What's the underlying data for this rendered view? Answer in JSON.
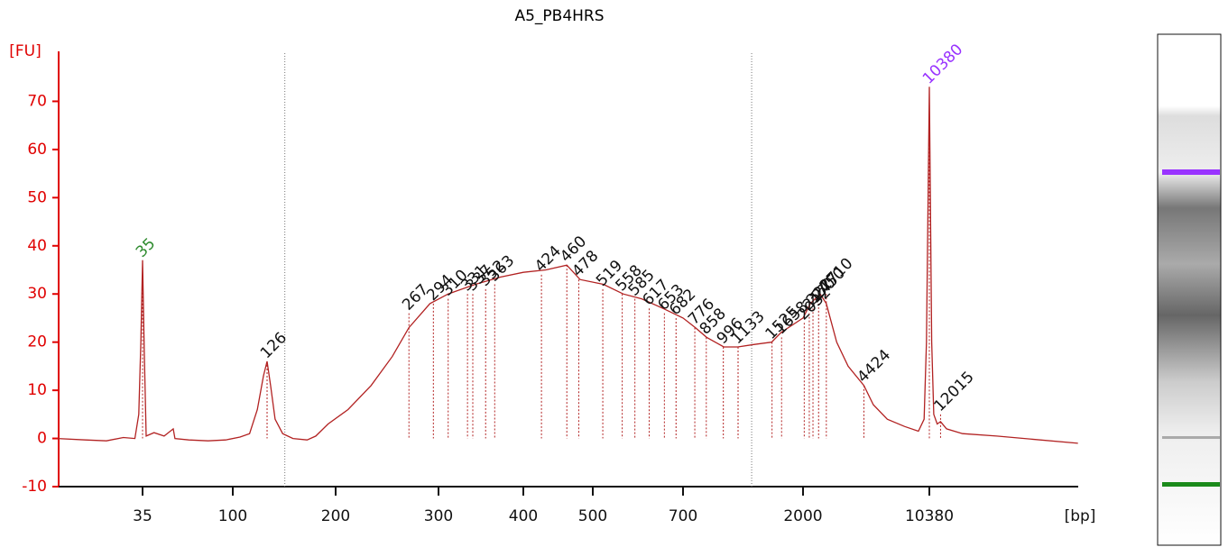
{
  "chart_data": {
    "type": "electropherogram",
    "title": "A5_PB4HRS",
    "ylabel": "[FU]",
    "xlabel": "[bp]",
    "ylim": [
      -10,
      80
    ],
    "yticks": [
      -10,
      0,
      10,
      20,
      30,
      40,
      50,
      60,
      70
    ],
    "xticks": [
      35,
      100,
      200,
      300,
      400,
      500,
      700,
      2000,
      10380
    ],
    "region_bounds": [
      142,
      1276
    ],
    "trace": {
      "color": "#b22222",
      "x": [
        13,
        18,
        23,
        28,
        32,
        33.5,
        34.3,
        35,
        35.7,
        36.5,
        40,
        45,
        50,
        51,
        60,
        75,
        92,
        105,
        112,
        118,
        123,
        126,
        129,
        133,
        140,
        150,
        165,
        175,
        190,
        210,
        230,
        250,
        267,
        290,
        310,
        340,
        370,
        400,
        430,
        460,
        480,
        520,
        560,
        600,
        650,
        700,
        780,
        860,
        1000,
        1130,
        1300,
        1520,
        1650,
        2000,
        2200,
        2500,
        2710,
        3100,
        3600,
        4424,
        5000,
        6000,
        7500,
        9000,
        9700,
        10000,
        10380,
        10700,
        11000,
        11500,
        12015,
        13000,
        16000,
        25000,
        72000
      ],
      "y": [
        0,
        -0.3,
        -0.5,
        0.2,
        0,
        5,
        20,
        37,
        18,
        0.5,
        1.2,
        0.5,
        2,
        0,
        -0.3,
        -0.5,
        -0.3,
        0.3,
        1,
        6,
        13,
        16,
        11,
        4,
        1,
        0,
        -0.3,
        0.5,
        3,
        6,
        11,
        17,
        23,
        28,
        30,
        32,
        33.5,
        34.5,
        35,
        36,
        33,
        32,
        30,
        29,
        27,
        25,
        23,
        21,
        19,
        19,
        19.5,
        20,
        22,
        25,
        28,
        30,
        28,
        20,
        15,
        11,
        7,
        4,
        2.5,
        1.5,
        4,
        20,
        73,
        20,
        5,
        3,
        3.5,
        2,
        1,
        0.5,
        -1
      ]
    },
    "peaks": {
      "bp": [
        35,
        126,
        267,
        294,
        310,
        331,
        337,
        352,
        363,
        424,
        460,
        478,
        519,
        558,
        585,
        617,
        653,
        682,
        776,
        858,
        996,
        1133,
        1525,
        1658,
        2032,
        2170,
        2277,
        2450,
        2710,
        4424,
        10380,
        12015
      ],
      "height": [
        37,
        16,
        26,
        28,
        29,
        30,
        30,
        31,
        32,
        34,
        36,
        33,
        31,
        30,
        29,
        27,
        26,
        25,
        23,
        21,
        19,
        19,
        20,
        21,
        24,
        26,
        27,
        28,
        30,
        11,
        73,
        5
      ],
      "colors": [
        "#2e8b2e",
        "#111",
        "#111",
        "#111",
        "#111",
        "#111",
        "#111",
        "#111",
        "#111",
        "#111",
        "#111",
        "#111",
        "#111",
        "#111",
        "#111",
        "#111",
        "#111",
        "#111",
        "#111",
        "#111",
        "#111",
        "#111",
        "#111",
        "#111",
        "#111",
        "#111",
        "#111",
        "#111",
        "#111",
        "#111",
        "#9933ff",
        "#111"
      ]
    }
  }
}
